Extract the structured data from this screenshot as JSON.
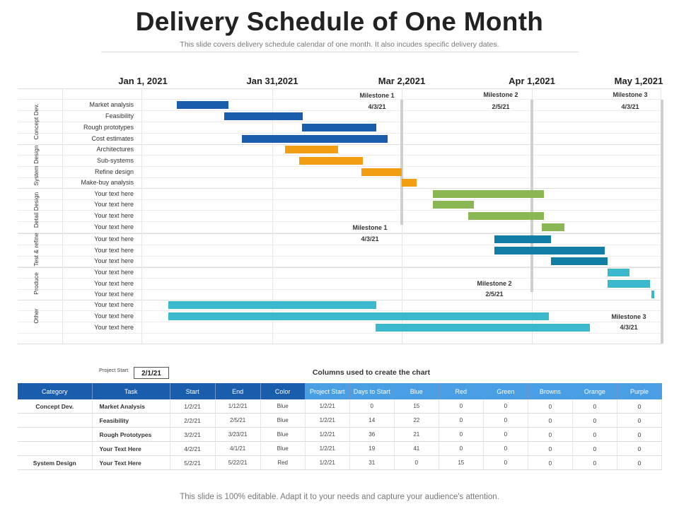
{
  "header": {
    "title": "Delivery Schedule of One Month",
    "subtitle": "This slide covers delivery schedule calendar of one month. It also incudes specific delivery dates."
  },
  "timeline": {
    "dates": [
      "Jan 1, 2021",
      "Jan 31,2021",
      "Mar 2,2021",
      "Apr 1,2021",
      "May 1,2021"
    ],
    "categories": [
      {
        "label": "Concept Dev."
      },
      {
        "label": "System Design"
      },
      {
        "label": "Detail Design"
      },
      {
        "label": "Test & refine"
      },
      {
        "label": "Produce"
      },
      {
        "label": "Other"
      }
    ],
    "tasks": [
      {
        "label": "Market analysis",
        "color": "#1a5dad"
      },
      {
        "label": "Feasibility",
        "color": "#1a5dad"
      },
      {
        "label": "Rough prototypes",
        "color": "#1a5dad"
      },
      {
        "label": "Cost estimates",
        "color": "#1a5dad"
      },
      {
        "label": "Architectures",
        "color": "#f19e12"
      },
      {
        "label": "Sub-systems",
        "color": "#f19e12"
      },
      {
        "label": "Refine design",
        "color": "#f19e12"
      },
      {
        "label": "Make-buy analysis",
        "color": "#f19e12"
      },
      {
        "label": "Your text here",
        "color": "#8ab653"
      },
      {
        "label": "Your text here",
        "color": "#8ab653"
      },
      {
        "label": "Your text here",
        "color": "#8ab653"
      },
      {
        "label": "Your text here",
        "color": "#8ab653"
      },
      {
        "label": "Your text here",
        "color": "#137ea5"
      },
      {
        "label": "Your text here",
        "color": "#137ea5"
      },
      {
        "label": "Your text here",
        "color": "#137ea5"
      },
      {
        "label": "Your text here",
        "color": "#3cb8cc"
      },
      {
        "label": "Your text here",
        "color": "#3cb8cc"
      },
      {
        "label": "Your text here",
        "color": "#3cb8cc"
      },
      {
        "label": "Your text here",
        "color": "#3cb8cc"
      },
      {
        "label": "Your text here",
        "color": "#3cb8cc"
      },
      {
        "label": "Your text here",
        "color": "#3cb8cc"
      }
    ],
    "milestones": [
      {
        "name": "Milestone 1",
        "date": "4/3/21"
      },
      {
        "name": "Milestone 2",
        "date": "2/5/21"
      },
      {
        "name": "Milestone 3",
        "date": "4/3/21"
      },
      {
        "name": "Milestone 1",
        "date": "4/3/21"
      },
      {
        "name": "Milestone 2",
        "date": "2/5/21"
      },
      {
        "name": "Milestone 3",
        "date": "4/3/21"
      }
    ]
  },
  "project_start": {
    "label": "Project Start",
    "value": "2/1/21"
  },
  "table": {
    "caption": "Columns used to create the chart",
    "headers": [
      "Category",
      "Task",
      "Start",
      "End",
      "Color",
      "Project Start",
      "Days to Start",
      "Blue",
      "Red",
      "Green",
      "Browns",
      "Orange",
      "Purple"
    ],
    "rows": [
      [
        "Concept Dev.",
        "Market Analysis",
        "1/2/21",
        "1/12/21",
        "Blue",
        "1/2/21",
        "0",
        "15",
        "0",
        "0",
        "0",
        "0",
        "0"
      ],
      [
        "",
        "Feasibility",
        "2/2/21",
        "2/5/21",
        "Blue",
        "1/2/21",
        "14",
        "22",
        "0",
        "0",
        "0",
        "0",
        "0"
      ],
      [
        "",
        "Rough Prototypes",
        "3/2/21",
        "3/23/21",
        "Blue",
        "1/2/21",
        "36",
        "21",
        "0",
        "0",
        "0",
        "0",
        "0"
      ],
      [
        "",
        "Your Text Here",
        "4/2/21",
        "4/1/21",
        "Blue",
        "1/2/21",
        "19",
        "41",
        "0",
        "0",
        "0",
        "0",
        "0"
      ],
      [
        "System Design",
        "Your Text Here",
        "5/2/21",
        "5/22/21",
        "Red",
        "1/2/21",
        "31",
        "0",
        "15",
        "0",
        "0",
        "0",
        "0"
      ]
    ]
  },
  "footer": {
    "text": "This slide is 100% editable. Adapt it to your needs and capture your audience's attention."
  }
}
